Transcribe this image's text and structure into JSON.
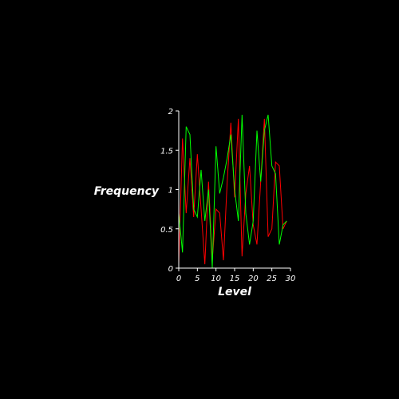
{
  "chart_data": {
    "type": "line",
    "title": "",
    "xlabel": "Level",
    "ylabel": "Frequency",
    "xlim": [
      0,
      30
    ],
    "ylim": [
      0,
      2
    ],
    "grid": false,
    "background": "#000000",
    "axis_color": "#ffffff",
    "x_ticks": [
      0,
      5,
      10,
      15,
      20,
      25,
      30
    ],
    "y_ticks": [
      0,
      0.5,
      1,
      1.5,
      2
    ],
    "x_tick_labels": [
      "0",
      "5",
      "10",
      "15",
      "20",
      "25",
      "30"
    ],
    "y_tick_labels": [
      "0",
      "0.5",
      "1",
      "1.5",
      "2"
    ],
    "x": [
      0,
      1,
      2,
      3,
      4,
      5,
      6,
      7,
      8,
      9,
      10,
      11,
      12,
      13,
      14,
      15,
      16,
      17,
      18,
      19,
      20,
      21,
      22,
      23,
      24,
      25,
      26,
      27,
      28,
      29
    ],
    "series": [
      {
        "color": "#ff0000",
        "values": [
          0.05,
          1.65,
          0.7,
          1.4,
          0.65,
          1.45,
          0.75,
          0.05,
          1.1,
          0.1,
          0.75,
          0.7,
          0.1,
          1.1,
          1.85,
          0.9,
          1.9,
          0.15,
          0.95,
          1.3,
          0.55,
          0.3,
          1.1,
          1.9,
          0.4,
          0.5,
          1.35,
          1.3,
          0.5,
          0.6
        ]
      },
      {
        "color": "#00ff00",
        "values": [
          0.7,
          0.2,
          1.8,
          1.7,
          0.75,
          0.65,
          1.25,
          0.6,
          1.0,
          0.0,
          1.55,
          0.95,
          1.15,
          1.4,
          1.7,
          1.0,
          0.6,
          1.95,
          0.7,
          0.3,
          0.6,
          1.75,
          1.1,
          1.75,
          1.95,
          1.3,
          1.2,
          0.3,
          0.55,
          0.6
        ]
      }
    ]
  }
}
